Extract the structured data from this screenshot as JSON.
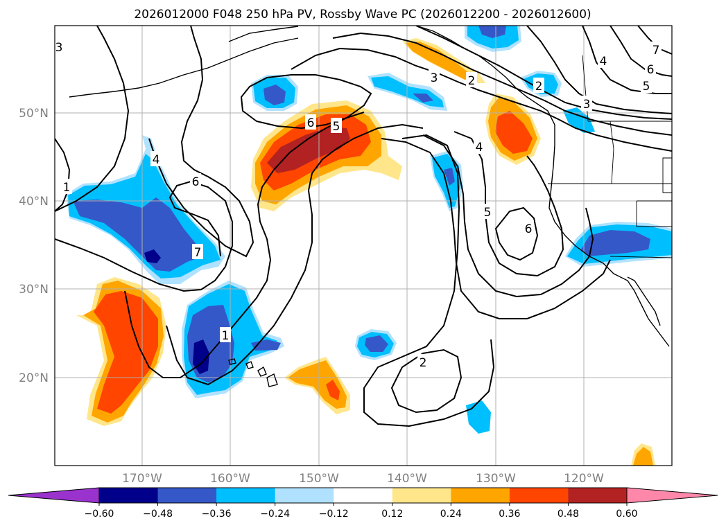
{
  "title": "2026012000 F048 250 hPa PV, Rossby Wave PC (2026012200 - 2026012600)",
  "lat_labels": [
    "50°N",
    "40°N",
    "30°N",
    "20°N"
  ],
  "lon_labels": [
    "170°W",
    "160°W",
    "150°W",
    "140°W",
    "130°W",
    "120°W"
  ],
  "contour_labels": [
    "1",
    "2",
    "3",
    "4",
    "5",
    "6",
    "7"
  ],
  "colorbar": {
    "ticks": [
      "−0.60",
      "−0.48",
      "−0.36",
      "−0.24",
      "−0.12",
      "0.12",
      "0.24",
      "0.36",
      "0.48",
      "0.60"
    ],
    "colors": [
      "#9a32cd",
      "#00008b",
      "#3558c8",
      "#00bfff",
      "#b0e2ff",
      "#ffffff",
      "#ffe68a",
      "#ffa500",
      "#ff4500",
      "#b22222",
      "#ff88aa"
    ]
  },
  "colors": {
    "neg_strong": "#00008b",
    "neg_mid": "#3558c8",
    "neg_light": "#00bfff",
    "neg_pale": "#b0e2ff",
    "pos_pale": "#ffe68a",
    "pos_mid": "#ffa500",
    "pos_strong": "#ff4500",
    "pos_max": "#b22222"
  }
}
